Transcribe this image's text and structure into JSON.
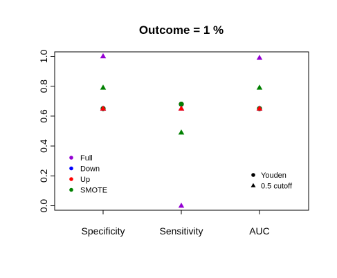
{
  "chart_data": {
    "type": "scatter",
    "title": "Outcome =  1 %",
    "xlabel": "",
    "ylabel": "",
    "categories": [
      "Specificity",
      "Sensitivity",
      "AUC"
    ],
    "yticks": [
      "0.0",
      "0.2",
      "0.4",
      "0.6",
      "0.8",
      "1.0"
    ],
    "ylim": [
      -0.03,
      1.03
    ],
    "grid": false,
    "series": [
      {
        "name": "Full",
        "color": "#9400d3",
        "youden": [
          0.65,
          0.68,
          0.65
        ],
        "cutoff": [
          1.0,
          0.0,
          0.99
        ]
      },
      {
        "name": "Down",
        "color": "#0000ff",
        "youden": [
          0.65,
          0.68,
          0.65
        ],
        "cutoff": [
          0.65,
          0.65,
          0.65
        ]
      },
      {
        "name": "Up",
        "color": "#ff0000",
        "youden": [
          0.65,
          0.68,
          0.65
        ],
        "cutoff": [
          0.65,
          0.65,
          0.65
        ]
      },
      {
        "name": "SMOTE",
        "color": "#008000",
        "youden": [
          0.65,
          0.68,
          0.65
        ],
        "cutoff": [
          0.79,
          0.49,
          0.79
        ]
      }
    ],
    "method_legend": [
      {
        "label": "Youden",
        "shape": "circle"
      },
      {
        "label": "0.5 cutoff",
        "shape": "triangle"
      }
    ],
    "legend_placement": [
      "bottom-left",
      "bottom-right"
    ]
  }
}
